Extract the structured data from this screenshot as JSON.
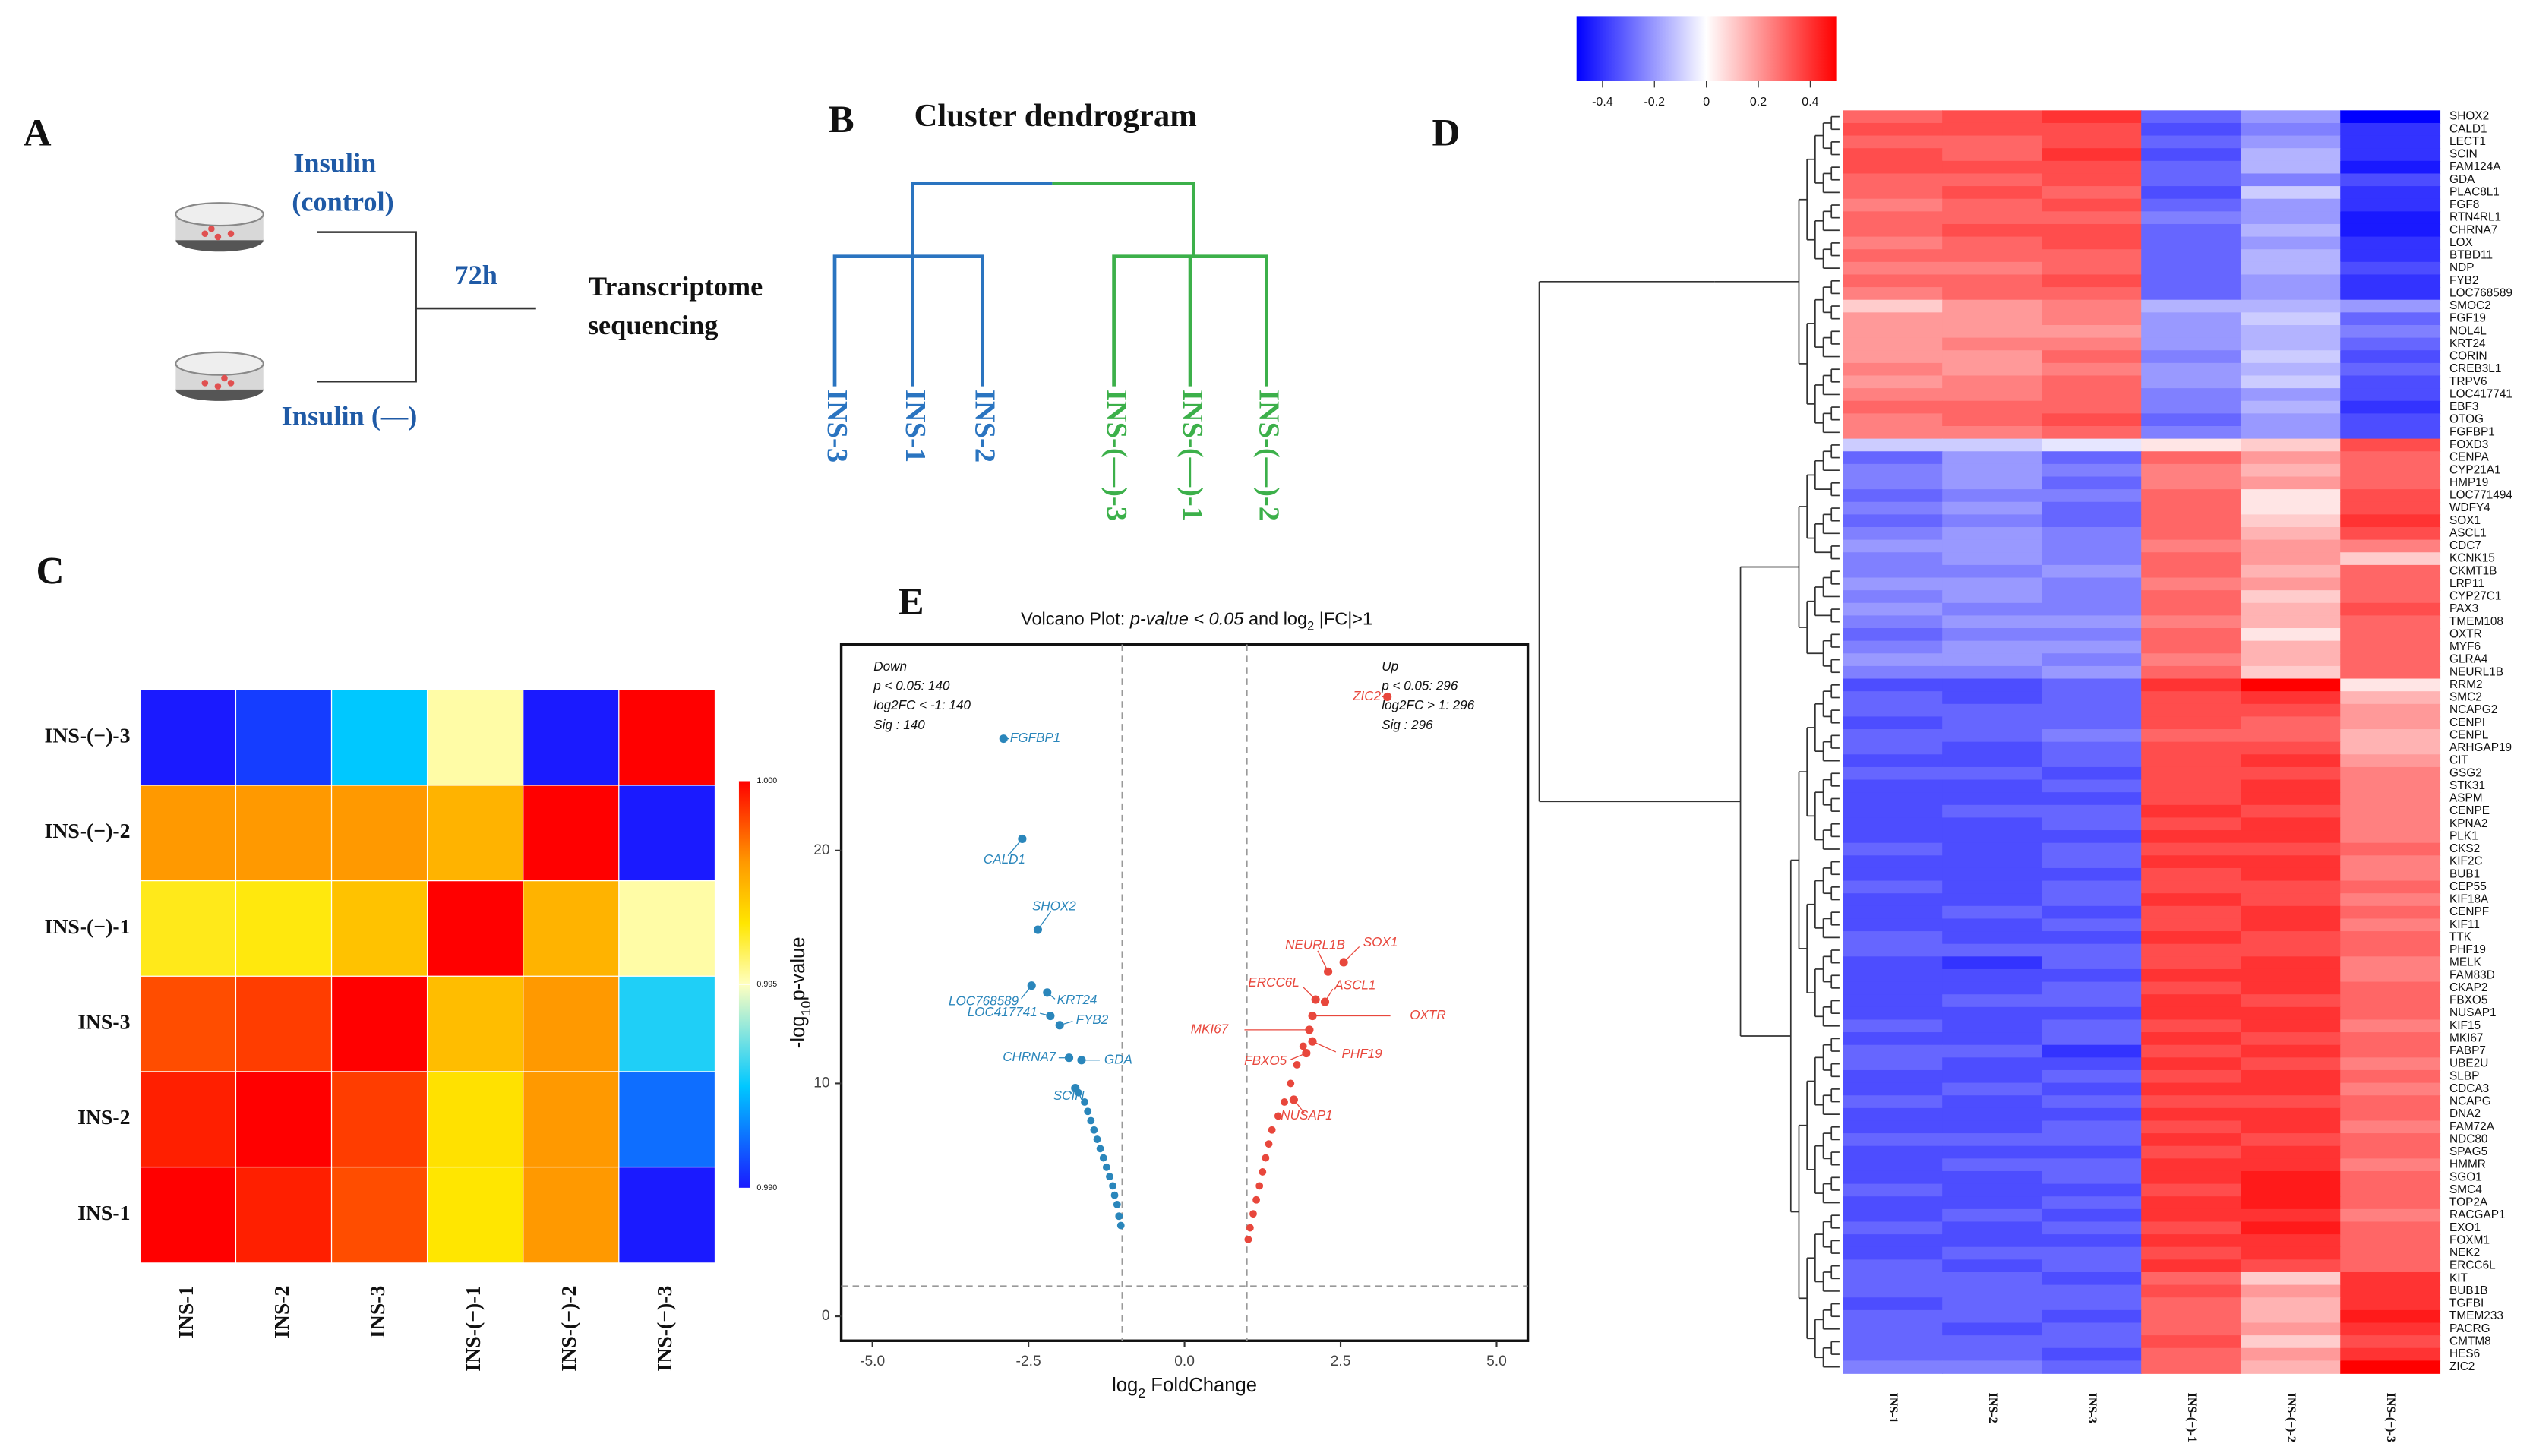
{
  "figure": {
    "A": {
      "label": "A",
      "group1": [
        "Insulin",
        "(control)"
      ],
      "group2": "Insulin (—)",
      "duration": "72h",
      "output": [
        "Transcriptome",
        "sequencing"
      ]
    },
    "B": {
      "label": "B",
      "title": "Cluster dendrogram",
      "leaves": [
        "INS-3",
        "INS-1",
        "INS-2",
        "INS-(—)-3",
        "INS-(—)-1",
        "INS-(—)-2"
      ]
    }
  },
  "chart_data": [
    {
      "type": "heatmap",
      "label": "C",
      "rows": [
        "INS-(−)-3",
        "INS-(−)-2",
        "INS-(−)-1",
        "INS-3",
        "INS-2",
        "INS-1"
      ],
      "columns": [
        "INS-1",
        "INS-2",
        "INS-3",
        "INS-(−)-1",
        "INS-(−)-2",
        "INS-(−)-3"
      ],
      "values": [
        [
          0.99,
          0.9905,
          0.9925,
          0.9952,
          0.99,
          1.0
        ],
        [
          0.998,
          0.998,
          0.998,
          0.9975,
          1.0,
          0.99
        ],
        [
          0.9963,
          0.9964,
          0.9972,
          1.0,
          0.9975,
          0.9952
        ],
        [
          0.999,
          0.9992,
          1.0,
          0.9973,
          0.998,
          0.9928
        ],
        [
          0.9996,
          1.0,
          0.9992,
          0.9966,
          0.998,
          0.9912
        ],
        [
          1.0,
          0.9996,
          0.999,
          0.9965,
          0.998,
          0.99
        ]
      ],
      "clim": [
        0.99,
        1.0
      ],
      "cticks": [
        {
          "value": 1,
          "label": "1.000"
        },
        {
          "value": 0.995,
          "label": "0.995"
        },
        {
          "value": 0.99,
          "label": "0.990"
        }
      ]
    },
    {
      "type": "scatter",
      "label": "E",
      "title_parts": [
        "Volcano Plot: ",
        "p-value < 0.05",
        " and log",
        "2",
        " |FC|>1"
      ],
      "x_label_parts": [
        "log",
        "2",
        " FoldChange"
      ],
      "y_label_parts": [
        "-log",
        "10",
        "p-value"
      ],
      "xlim": [
        -5.5,
        5.5
      ],
      "ylim": [
        -1.05,
        28.85
      ],
      "xticks": [
        {
          "value": -5,
          "label": "-5.0"
        },
        {
          "value": -2.5,
          "label": "-2.5"
        },
        {
          "value": 0,
          "label": "0.0"
        },
        {
          "value": 2.5,
          "label": "2.5"
        },
        {
          "value": 5,
          "label": "5.0"
        }
      ],
      "yticks": [
        0,
        10,
        20
      ],
      "thresholds": {
        "x": [
          -1,
          1
        ],
        "y": 1.3
      },
      "series": [
        {
          "name": "Down",
          "color": "#2a86bb",
          "notes": [
            "p < 0.05: 140",
            "log2FC < -1: 140",
            "Sig : 140"
          ],
          "x": [
            -2.9,
            -2.6,
            -2.35,
            -2.45,
            -2.2,
            -2.15,
            -2.0,
            -1.85,
            -1.65,
            -1.75,
            -1.02,
            -1.05,
            -1.08,
            -1.12,
            -1.15,
            -1.2,
            -1.25,
            -1.3,
            -1.35,
            -1.4,
            -1.45,
            -1.5,
            -1.55,
            -1.6,
            -1.7
          ],
          "values": [
            24.8,
            20.5,
            16.6,
            14.2,
            13.9,
            12.9,
            12.5,
            11.1,
            11.0,
            9.8,
            3.9,
            4.3,
            4.8,
            5.2,
            5.6,
            6.0,
            6.4,
            6.8,
            7.2,
            7.6,
            8.0,
            8.4,
            8.8,
            9.2,
            9.6
          ],
          "point_labels": [
            "FGFBP1",
            "CALD1",
            "SHOX2",
            "LOC768589",
            "KRT24",
            "LOC417741",
            "FYB2",
            "CHRNA7",
            "GDA",
            "SCIN",
            null,
            null,
            null,
            null,
            null,
            null,
            null,
            null,
            null,
            null,
            null,
            null,
            null,
            null,
            null
          ]
        },
        {
          "name": "Up",
          "color": "#e8473c",
          "notes": [
            "p < 0.05: 296",
            "log2FC > 1: 296",
            "Sig : 296"
          ],
          "x": [
            3.25,
            2.3,
            2.55,
            2.25,
            2.1,
            2.05,
            2.0,
            2.05,
            1.95,
            1.75,
            1.02,
            1.05,
            1.1,
            1.15,
            1.2,
            1.25,
            1.3,
            1.35,
            1.4,
            1.5,
            1.6,
            1.7,
            1.8,
            1.9
          ],
          "values": [
            26.6,
            14.8,
            15.2,
            13.5,
            13.6,
            12.9,
            12.3,
            11.8,
            11.3,
            9.3,
            3.3,
            3.8,
            4.4,
            5.0,
            5.6,
            6.2,
            6.8,
            7.4,
            8.0,
            8.6,
            9.2,
            10.0,
            10.8,
            11.6
          ],
          "point_labels": [
            "ZIC2",
            "NEURL1B",
            "SOX1",
            "ASCL1",
            "ERCC6L",
            "OXTR",
            "MKI67",
            "PHF19",
            "FBXO5",
            "NUSAP1",
            null,
            null,
            null,
            null,
            null,
            null,
            null,
            null,
            null,
            null,
            null,
            null,
            null,
            null
          ]
        }
      ]
    },
    {
      "type": "heatmap",
      "label": "D",
      "columns": [
        "INS-1",
        "INS-2",
        "INS-3",
        "INS-(−)-1",
        "INS-(−)-2",
        "INS-(−)-3"
      ],
      "rows": [
        "SHOX2",
        "CALD1",
        "LECT1",
        "SCIN",
        "FAM124A",
        "GDA",
        "PLAC8L1",
        "FGF8",
        "RTN4RL1",
        "CHRNA7",
        "LOX",
        "BTBD11",
        "NDP",
        "FYB2",
        "LOC768589",
        "SMOC2",
        "FGF19",
        "NOL4L",
        "KRT24",
        "CORIN",
        "CREB3L1",
        "TRPV6",
        "LOC417741",
        "EBF3",
        "OTOG",
        "FGFBP1",
        "FOXD3",
        "CENPA",
        "CYP21A1",
        "HMP19",
        "LOC771494",
        "WDFY4",
        "SOX1",
        "ASCL1",
        "CDC7",
        "KCNK15",
        "CKMT1B",
        "LRP11",
        "CYP27C1",
        "PAX3",
        "TMEM108",
        "OXTR",
        "MYF6",
        "GLRA4",
        "NEURL1B",
        "RRM2",
        "SMC2",
        "NCAPG2",
        "CENPI",
        "CENPL",
        "ARHGAP19",
        "CIT",
        "GSG2",
        "STK31",
        "ASPM",
        "CENPE",
        "KPNA2",
        "PLK1",
        "CKS2",
        "KIF2C",
        "BUB1",
        "CEP55",
        "KIF18A",
        "CENPF",
        "KIF11",
        "TTK",
        "PHF19",
        "MELK",
        "FAM83D",
        "CKAP2",
        "FBXO5",
        "NUSAP1",
        "KIF15",
        "MKI67",
        "FABP7",
        "UBE2U",
        "SLBP",
        "CDCA3",
        "NCAPG",
        "DNA2",
        "FAM72A",
        "NDC80",
        "SPAG5",
        "HMMR",
        "SGO1",
        "SMC4",
        "TOP2A",
        "RACGAP1",
        "EXO1",
        "FOXM1",
        "NEK2",
        "ERCC6L",
        "KIT",
        "BUB1B",
        "TGFBI",
        "TMEM233",
        "PACRG",
        "CMTM8",
        "HES6",
        "ZIC2"
      ],
      "values": [
        [
          0.3,
          0.35,
          0.4,
          -0.3,
          -0.2,
          -0.5
        ],
        [
          0.35,
          0.35,
          0.35,
          -0.35,
          -0.25,
          -0.4
        ],
        [
          0.3,
          0.3,
          0.35,
          -0.3,
          -0.2,
          -0.4
        ],
        [
          0.35,
          0.3,
          0.4,
          -0.35,
          -0.15,
          -0.4
        ],
        [
          0.35,
          0.35,
          0.35,
          -0.3,
          -0.15,
          -0.45
        ],
        [
          0.3,
          0.3,
          0.35,
          -0.3,
          -0.25,
          -0.35
        ],
        [
          0.3,
          0.35,
          0.3,
          -0.35,
          -0.1,
          -0.4
        ],
        [
          0.25,
          0.3,
          0.35,
          -0.3,
          -0.2,
          -0.4
        ],
        [
          0.3,
          0.3,
          0.3,
          -0.25,
          -0.2,
          -0.45
        ],
        [
          0.3,
          0.35,
          0.35,
          -0.3,
          -0.15,
          -0.45
        ],
        [
          0.25,
          0.3,
          0.35,
          -0.3,
          -0.2,
          -0.4
        ],
        [
          0.3,
          0.3,
          0.3,
          -0.3,
          -0.15,
          -0.4
        ],
        [
          0.25,
          0.25,
          0.3,
          -0.3,
          -0.15,
          -0.35
        ],
        [
          0.3,
          0.3,
          0.35,
          -0.3,
          -0.2,
          -0.4
        ],
        [
          0.25,
          0.3,
          0.3,
          -0.3,
          -0.2,
          -0.4
        ],
        [
          0.1,
          0.2,
          0.25,
          -0.15,
          -0.15,
          -0.2
        ],
        [
          0.2,
          0.2,
          0.25,
          -0.2,
          -0.1,
          -0.3
        ],
        [
          0.2,
          0.2,
          0.2,
          -0.2,
          -0.15,
          -0.25
        ],
        [
          0.2,
          0.25,
          0.25,
          -0.2,
          -0.15,
          -0.3
        ],
        [
          0.2,
          0.2,
          0.3,
          -0.25,
          -0.1,
          -0.35
        ],
        [
          0.25,
          0.2,
          0.25,
          -0.2,
          -0.15,
          -0.3
        ],
        [
          0.2,
          0.25,
          0.3,
          -0.2,
          -0.1,
          -0.35
        ],
        [
          0.25,
          0.25,
          0.3,
          -0.25,
          -0.2,
          -0.35
        ],
        [
          0.3,
          0.3,
          0.3,
          -0.25,
          -0.15,
          -0.4
        ],
        [
          0.25,
          0.3,
          0.35,
          -0.3,
          -0.2,
          -0.35
        ],
        [
          0.25,
          0.25,
          0.3,
          -0.25,
          -0.2,
          -0.35
        ],
        [
          -0.1,
          -0.1,
          -0.05,
          0.05,
          0.1,
          0.35
        ],
        [
          -0.3,
          -0.2,
          -0.3,
          0.3,
          0.2,
          0.3
        ],
        [
          -0.25,
          -0.2,
          -0.25,
          0.25,
          0.15,
          0.3
        ],
        [
          -0.25,
          -0.2,
          -0.3,
          0.25,
          0.2,
          0.3
        ],
        [
          -0.3,
          -0.25,
          -0.25,
          0.3,
          0.05,
          0.35
        ],
        [
          -0.25,
          -0.2,
          -0.3,
          0.3,
          0.05,
          0.35
        ],
        [
          -0.3,
          -0.25,
          -0.3,
          0.3,
          0.1,
          0.4
        ],
        [
          -0.25,
          -0.2,
          -0.25,
          0.3,
          0.15,
          0.35
        ],
        [
          -0.2,
          -0.2,
          -0.25,
          0.25,
          0.2,
          0.25
        ],
        [
          -0.25,
          -0.2,
          -0.25,
          0.3,
          0.2,
          0.1
        ],
        [
          -0.25,
          -0.25,
          -0.2,
          0.3,
          0.15,
          0.3
        ],
        [
          -0.2,
          -0.2,
          -0.25,
          0.25,
          0.2,
          0.3
        ],
        [
          -0.25,
          -0.2,
          -0.25,
          0.3,
          0.1,
          0.3
        ],
        [
          -0.2,
          -0.25,
          -0.25,
          0.3,
          0.15,
          0.35
        ],
        [
          -0.25,
          -0.2,
          -0.2,
          0.25,
          0.15,
          0.3
        ],
        [
          -0.3,
          -0.25,
          -0.25,
          0.3,
          0.05,
          0.3
        ],
        [
          -0.25,
          -0.2,
          -0.2,
          0.3,
          0.15,
          0.3
        ],
        [
          -0.2,
          -0.2,
          -0.25,
          0.25,
          0.15,
          0.3
        ],
        [
          -0.25,
          -0.25,
          -0.2,
          0.3,
          0.1,
          0.3
        ],
        [
          -0.35,
          -0.35,
          -0.3,
          0.4,
          0.5,
          0.05
        ],
        [
          -0.3,
          -0.35,
          -0.3,
          0.35,
          0.4,
          0.15
        ],
        [
          -0.3,
          -0.3,
          -0.3,
          0.35,
          0.35,
          0.2
        ],
        [
          -0.35,
          -0.3,
          -0.3,
          0.35,
          0.3,
          0.2
        ],
        [
          -0.3,
          -0.3,
          -0.25,
          0.3,
          0.3,
          0.15
        ],
        [
          -0.3,
          -0.35,
          -0.3,
          0.35,
          0.35,
          0.15
        ],
        [
          -0.35,
          -0.35,
          -0.3,
          0.35,
          0.4,
          0.2
        ],
        [
          -0.3,
          -0.3,
          -0.35,
          0.35,
          0.35,
          0.25
        ],
        [
          -0.35,
          -0.35,
          -0.3,
          0.35,
          0.4,
          0.25
        ],
        [
          -0.35,
          -0.35,
          -0.35,
          0.35,
          0.4,
          0.25
        ],
        [
          -0.35,
          -0.3,
          -0.3,
          0.4,
          0.35,
          0.25
        ],
        [
          -0.35,
          -0.35,
          -0.3,
          0.35,
          0.4,
          0.25
        ],
        [
          -0.35,
          -0.35,
          -0.35,
          0.4,
          0.4,
          0.25
        ],
        [
          -0.3,
          -0.35,
          -0.3,
          0.35,
          0.35,
          0.3
        ],
        [
          -0.35,
          -0.35,
          -0.3,
          0.4,
          0.4,
          0.25
        ],
        [
          -0.35,
          -0.35,
          -0.35,
          0.35,
          0.4,
          0.25
        ],
        [
          -0.3,
          -0.35,
          -0.3,
          0.35,
          0.35,
          0.3
        ],
        [
          -0.35,
          -0.35,
          -0.3,
          0.4,
          0.35,
          0.25
        ],
        [
          -0.35,
          -0.3,
          -0.35,
          0.35,
          0.4,
          0.3
        ],
        [
          -0.35,
          -0.35,
          -0.3,
          0.35,
          0.4,
          0.25
        ],
        [
          -0.3,
          -0.35,
          -0.35,
          0.4,
          0.35,
          0.3
        ],
        [
          -0.3,
          -0.3,
          -0.3,
          0.35,
          0.35,
          0.3
        ],
        [
          -0.35,
          -0.4,
          -0.3,
          0.35,
          0.4,
          0.25
        ],
        [
          -0.35,
          -0.35,
          -0.35,
          0.4,
          0.4,
          0.25
        ],
        [
          -0.35,
          -0.35,
          -0.3,
          0.35,
          0.4,
          0.3
        ],
        [
          -0.35,
          -0.3,
          -0.3,
          0.4,
          0.35,
          0.3
        ],
        [
          -0.35,
          -0.35,
          -0.35,
          0.4,
          0.4,
          0.3
        ],
        [
          -0.3,
          -0.35,
          -0.3,
          0.35,
          0.4,
          0.25
        ],
        [
          -0.35,
          -0.35,
          -0.3,
          0.4,
          0.35,
          0.3
        ],
        [
          -0.3,
          -0.3,
          -0.4,
          0.35,
          0.4,
          0.3
        ],
        [
          -0.3,
          -0.35,
          -0.35,
          0.4,
          0.35,
          0.25
        ],
        [
          -0.35,
          -0.35,
          -0.3,
          0.35,
          0.4,
          0.3
        ],
        [
          -0.35,
          -0.3,
          -0.35,
          0.4,
          0.4,
          0.25
        ],
        [
          -0.3,
          -0.35,
          -0.3,
          0.35,
          0.35,
          0.3
        ],
        [
          -0.35,
          -0.35,
          -0.35,
          0.4,
          0.4,
          0.3
        ],
        [
          -0.35,
          -0.35,
          -0.3,
          0.35,
          0.4,
          0.25
        ],
        [
          -0.3,
          -0.3,
          -0.3,
          0.4,
          0.35,
          0.3
        ],
        [
          -0.35,
          -0.35,
          -0.35,
          0.35,
          0.4,
          0.3
        ],
        [
          -0.35,
          -0.3,
          -0.3,
          0.4,
          0.4,
          0.25
        ],
        [
          -0.35,
          -0.35,
          -0.3,
          0.4,
          0.45,
          0.3
        ],
        [
          -0.3,
          -0.35,
          -0.35,
          0.35,
          0.45,
          0.3
        ],
        [
          -0.35,
          -0.35,
          -0.3,
          0.4,
          0.45,
          0.3
        ],
        [
          -0.35,
          -0.3,
          -0.35,
          0.4,
          0.4,
          0.25
        ],
        [
          -0.3,
          -0.35,
          -0.3,
          0.35,
          0.45,
          0.3
        ],
        [
          -0.35,
          -0.35,
          -0.35,
          0.4,
          0.4,
          0.3
        ],
        [
          -0.35,
          -0.3,
          -0.3,
          0.35,
          0.4,
          0.3
        ],
        [
          -0.3,
          -0.35,
          -0.3,
          0.4,
          0.35,
          0.3
        ],
        [
          -0.3,
          -0.3,
          -0.35,
          0.3,
          0.1,
          0.4
        ],
        [
          -0.3,
          -0.3,
          -0.3,
          0.35,
          0.2,
          0.4
        ],
        [
          -0.35,
          -0.3,
          -0.3,
          0.3,
          0.15,
          0.4
        ],
        [
          -0.3,
          -0.3,
          -0.35,
          0.3,
          0.15,
          0.45
        ],
        [
          -0.3,
          -0.35,
          -0.3,
          0.3,
          0.2,
          0.4
        ],
        [
          -0.3,
          -0.3,
          -0.3,
          0.35,
          0.1,
          0.35
        ],
        [
          -0.3,
          -0.3,
          -0.35,
          0.3,
          0.2,
          0.4
        ],
        [
          -0.25,
          -0.25,
          -0.3,
          0.3,
          0.15,
          0.5
        ]
      ],
      "clim": [
        -0.5,
        0.5
      ],
      "cticks": [
        -0.4,
        -0.2,
        0,
        0.2,
        0.4
      ]
    }
  ]
}
